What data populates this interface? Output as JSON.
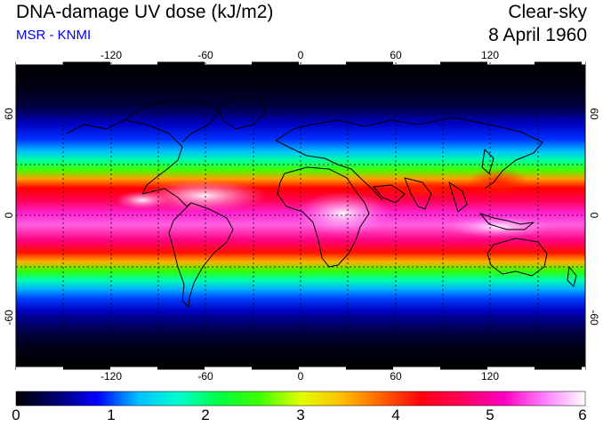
{
  "header": {
    "title": "DNA-damage UV dose (kJ/m2)",
    "subtitle": "MSR - KNMI",
    "condition": "Clear-sky",
    "date": "8 April 1960"
  },
  "map": {
    "lon_ticks": [
      "-120",
      "-60",
      "0",
      "60",
      "120"
    ],
    "lat_ticks_left": [
      "60",
      "0",
      "-60"
    ],
    "lat_ticks_right": [
      "60",
      "0",
      "-60"
    ]
  },
  "colorbar": {
    "ticks": [
      "0",
      "1",
      "2",
      "3",
      "4",
      "5",
      "6"
    ],
    "colors": [
      "#000000",
      "#00006e",
      "#0000ff",
      "#00bfff",
      "#00ffd0",
      "#00ff40",
      "#40ff00",
      "#e0ff00",
      "#ffc000",
      "#ff6000",
      "#ff0010",
      "#ff0060",
      "#ff00c0",
      "#ff80ff",
      "#ffffff"
    ]
  }
}
